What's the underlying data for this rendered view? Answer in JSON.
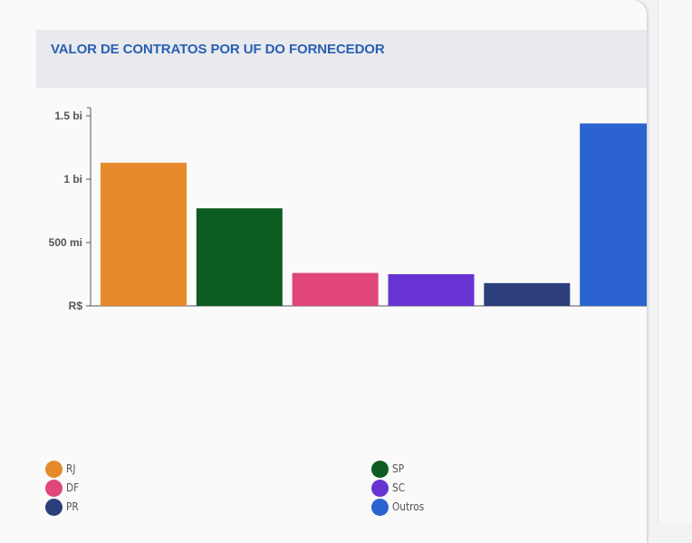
{
  "panel": {
    "title": "VALOR DE CONTRATOS POR UF DO FORNECEDOR"
  },
  "chart_data": {
    "type": "bar",
    "categories": [
      "RJ",
      "SP",
      "DF",
      "SC",
      "PR",
      "Outros"
    ],
    "values": [
      1130000000,
      770000000,
      260000000,
      250000000,
      180000000,
      1440000000
    ],
    "colors": [
      "#e6892b",
      "#0d5c22",
      "#e0457c",
      "#6734d3",
      "#2c3f7c",
      "#2b63d0"
    ],
    "ylim": [
      0,
      1500000000
    ],
    "yticks": [
      {
        "value": 0,
        "label": "R$"
      },
      {
        "value": 500000000,
        "label": "500 mi"
      },
      {
        "value": 1000000000,
        "label": "1 bi"
      },
      {
        "value": 1500000000,
        "label": "1.5 bi"
      }
    ],
    "grid": false,
    "legend_position": "bottom"
  },
  "legend": {
    "items": [
      {
        "label": "RJ",
        "color": "#e6892b"
      },
      {
        "label": "SP",
        "color": "#0d5c22"
      },
      {
        "label": "DF",
        "color": "#e0457c"
      },
      {
        "label": "SC",
        "color": "#6734d3"
      },
      {
        "label": "PR",
        "color": "#2c3f7c"
      },
      {
        "label": "Outros",
        "color": "#2b63d0"
      }
    ]
  }
}
